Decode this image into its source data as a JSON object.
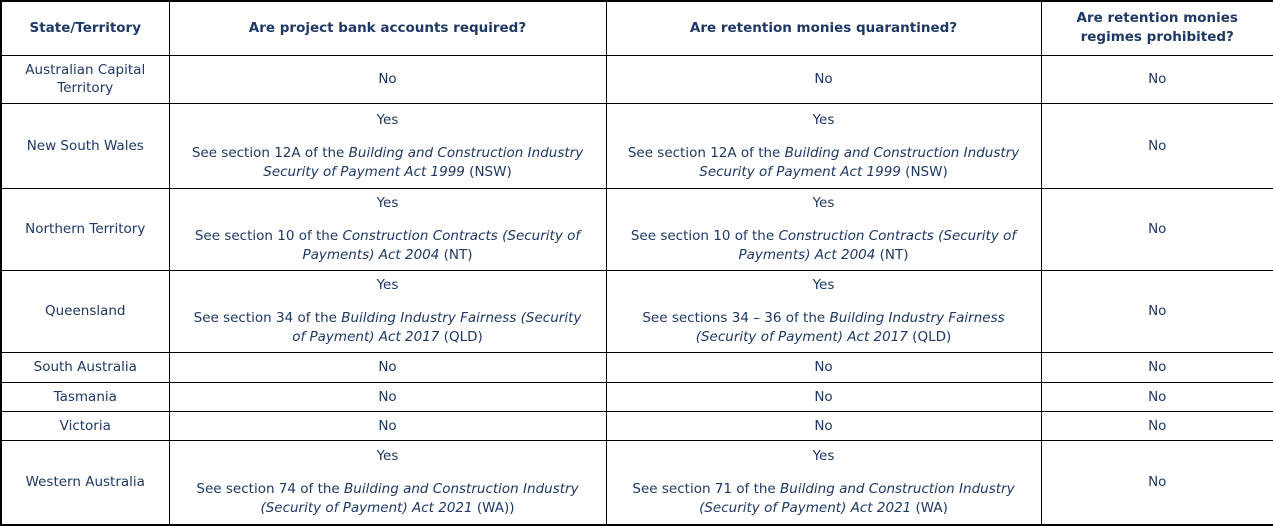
{
  "colors": {
    "text": "#1f3864",
    "border": "#000000",
    "background": "#ffffff"
  },
  "table": {
    "headers": [
      "State/Territory",
      "Are project bank accounts required?",
      "Are retention monies quarantined?",
      "Are retention monies regimes prohibited?"
    ],
    "rows": [
      {
        "state": "Australian Capital Territory",
        "pba": {
          "answer": "No"
        },
        "retention": {
          "answer": "No"
        },
        "prohibited": "No"
      },
      {
        "state": "New South Wales",
        "pba": {
          "answer": "Yes",
          "note_prefix": "See section 12A of the ",
          "act": "Building and Construction Industry Security of Payment Act 1999",
          "note_suffix": " (NSW)"
        },
        "retention": {
          "answer": "Yes",
          "note_prefix": "See section 12A of the ",
          "act": "Building and Construction Industry Security of Payment Act 1999",
          "note_suffix": " (NSW)"
        },
        "prohibited": "No"
      },
      {
        "state": "Northern Territory",
        "pba": {
          "answer": "Yes",
          "note_prefix": "See section 10 of the ",
          "act": "Construction Contracts (Security of Payments) Act 2004",
          "note_suffix": " (NT)"
        },
        "retention": {
          "answer": "Yes",
          "note_prefix": "See section 10 of the ",
          "act": "Construction Contracts (Security of Payments) Act 2004",
          "note_suffix": " (NT)"
        },
        "prohibited": "No"
      },
      {
        "state": "Queensland",
        "pba": {
          "answer": "Yes",
          "note_prefix": "See section 34 of the ",
          "act": "Building Industry Fairness (Security of Payment) Act 2017",
          "note_suffix": " (QLD)"
        },
        "retention": {
          "answer": "Yes",
          "note_prefix": "See sections 34 – 36 of the ",
          "act": "Building Industry Fairness (Security of Payment) Act 2017",
          "note_suffix": " (QLD)"
        },
        "prohibited": "No"
      },
      {
        "state": "South Australia",
        "pba": {
          "answer": "No"
        },
        "retention": {
          "answer": "No"
        },
        "prohibited": "No"
      },
      {
        "state": "Tasmania",
        "pba": {
          "answer": "No"
        },
        "retention": {
          "answer": "No"
        },
        "prohibited": "No"
      },
      {
        "state": "Victoria",
        "pba": {
          "answer": "No"
        },
        "retention": {
          "answer": "No"
        },
        "prohibited": "No"
      },
      {
        "state": "Western Australia",
        "pba": {
          "answer": "Yes",
          "note_prefix": "See section 74 of the ",
          "act": "Building and Construction Industry (Security of Payment) Act 2021",
          "note_suffix": " (WA))"
        },
        "retention": {
          "answer": "Yes",
          "note_prefix": "See section 71 of the ",
          "act": "Building and Construction Industry (Security of Payment) Act 2021",
          "note_suffix": " (WA)"
        },
        "prohibited": "No"
      }
    ]
  }
}
